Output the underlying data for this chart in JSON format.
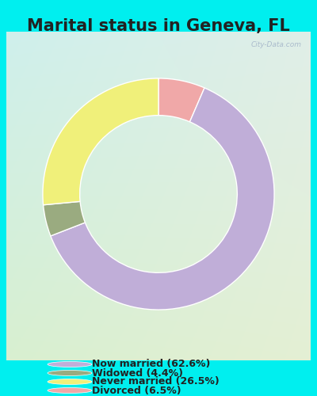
{
  "title": "Marital status in Geneva, FL",
  "categories": [
    "Now married",
    "Widowed",
    "Never married",
    "Divorced"
  ],
  "values": [
    62.6,
    4.4,
    26.5,
    6.5
  ],
  "colors": [
    "#c0aed8",
    "#9aab80",
    "#f0f07a",
    "#f0a8a8"
  ],
  "legend_labels": [
    "Now married (62.6%)",
    "Widowed (4.4%)",
    "Never married (26.5%)",
    "Divorced (6.5%)"
  ],
  "outer_bg": "#00efef",
  "chart_bg_top": "#d8f0ec",
  "chart_bg_bottom": "#d4edcc",
  "title_fontsize": 15,
  "watermark": "City-Data.com",
  "donut_width": 0.32,
  "plot_order": [
    3,
    0,
    1,
    2
  ],
  "start_angle": 90
}
